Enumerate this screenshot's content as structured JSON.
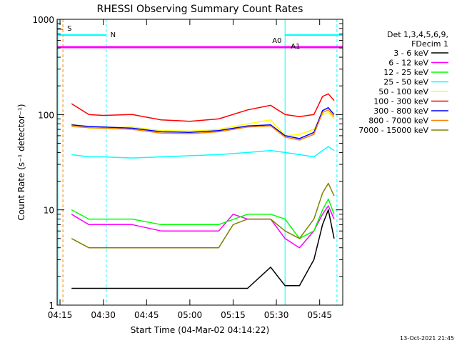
{
  "chart_data": {
    "type": "line",
    "title": "RHESSI Observing Summary Count Rates",
    "xlabel": "Start Time (04-Mar-02 04:14:22)",
    "ylabel": "Count Rate (s⁻¹ detector⁻¹)",
    "y_scale": "log",
    "ylim": [
      1,
      1000
    ],
    "xlim": [
      "04:14",
      "05:53"
    ],
    "x_ticks": [
      "04:15",
      "04:30",
      "04:45",
      "05:00",
      "05:15",
      "05:30",
      "05:45"
    ],
    "y_ticks": [
      "1",
      "10",
      "100",
      "1000"
    ],
    "legend_position": "right",
    "legend_header": [
      "Det 1,3,4,5,6,9,",
      "FDecim 1"
    ],
    "series": [
      {
        "name": "3 - 6 keV",
        "color": "#000000",
        "x": [
          "04:19",
          "04:25",
          "04:30",
          "04:40",
          "04:50",
          "05:00",
          "05:10",
          "05:20",
          "05:28",
          "05:33",
          "05:38",
          "05:43",
          "05:46",
          "05:48",
          "05:50"
        ],
        "y": [
          1.5,
          1.5,
          1.5,
          1.5,
          1.5,
          1.5,
          1.5,
          1.5,
          2.5,
          1.6,
          1.6,
          3,
          7,
          10,
          5
        ]
      },
      {
        "name": "6 - 12 keV",
        "color": "#ff00ff",
        "x": [
          "04:19",
          "04:25",
          "04:30",
          "04:40",
          "04:50",
          "05:00",
          "05:10",
          "05:15",
          "05:20",
          "05:28",
          "05:33",
          "05:38",
          "05:43",
          "05:46",
          "05:48",
          "05:50"
        ],
        "y": [
          9,
          7,
          7,
          7,
          6,
          6,
          6,
          9,
          8,
          8,
          5,
          4,
          6,
          9,
          11,
          8
        ]
      },
      {
        "name": "12 - 25 keV",
        "color": "#00ff00",
        "x": [
          "04:19",
          "04:25",
          "04:30",
          "04:40",
          "04:50",
          "05:00",
          "05:10",
          "05:20",
          "05:28",
          "05:33",
          "05:38",
          "05:43",
          "05:46",
          "05:48",
          "05:50"
        ],
        "y": [
          10,
          8,
          8,
          8,
          7,
          7,
          7,
          9,
          9,
          8,
          5,
          6,
          10,
          13,
          9
        ]
      },
      {
        "name": "25 - 50 keV",
        "color": "#00ffff",
        "x": [
          "04:19",
          "04:25",
          "04:30",
          "04:40",
          "04:50",
          "05:00",
          "05:10",
          "05:20",
          "05:28",
          "05:33",
          "05:38",
          "05:43",
          "05:46",
          "05:48",
          "05:50"
        ],
        "y": [
          38,
          36,
          36,
          35,
          36,
          37,
          38,
          40,
          42,
          40,
          38,
          36,
          42,
          46,
          42
        ]
      },
      {
        "name": "50 - 100 keV",
        "color": "#ffff00",
        "x": [
          "04:19",
          "04:25",
          "04:30",
          "04:40",
          "04:50",
          "05:00",
          "05:10",
          "05:20",
          "05:28",
          "05:33",
          "05:38",
          "05:43",
          "05:46",
          "05:48",
          "05:50"
        ],
        "y": [
          80,
          72,
          72,
          74,
          68,
          67,
          70,
          80,
          88,
          60,
          62,
          70,
          100,
          105,
          90
        ]
      },
      {
        "name": "100 - 300 keV",
        "color": "#ff0000",
        "x": [
          "04:19",
          "04:25",
          "04:30",
          "04:40",
          "04:50",
          "05:00",
          "05:10",
          "05:20",
          "05:28",
          "05:33",
          "05:38",
          "05:43",
          "05:46",
          "05:48",
          "05:50"
        ],
        "y": [
          130,
          100,
          98,
          100,
          88,
          85,
          90,
          112,
          125,
          100,
          95,
          100,
          155,
          165,
          140
        ]
      },
      {
        "name": "300 - 800 keV",
        "color": "#0000ff",
        "x": [
          "04:19",
          "04:25",
          "04:30",
          "04:40",
          "04:50",
          "05:00",
          "05:10",
          "05:20",
          "05:28",
          "05:33",
          "05:38",
          "05:43",
          "05:46",
          "05:48",
          "05:50"
        ],
        "y": [
          78,
          75,
          74,
          72,
          66,
          65,
          68,
          76,
          78,
          60,
          56,
          65,
          110,
          118,
          100
        ]
      },
      {
        "name": "800 - 7000 keV",
        "color": "#ff8000",
        "x": [
          "04:19",
          "04:25",
          "04:30",
          "04:40",
          "04:50",
          "05:00",
          "05:10",
          "05:20",
          "05:28",
          "05:33",
          "05:38",
          "05:43",
          "05:46",
          "05:48",
          "05:50"
        ],
        "y": [
          75,
          73,
          72,
          70,
          64,
          63,
          66,
          74,
          76,
          58,
          54,
          62,
          105,
          112,
          95
        ]
      },
      {
        "name": "7000 - 15000 keV",
        "color": "#808000",
        "x": [
          "04:19",
          "04:25",
          "04:30",
          "04:40",
          "04:50",
          "05:00",
          "05:10",
          "05:15",
          "05:20",
          "05:28",
          "05:33",
          "05:38",
          "05:43",
          "05:46",
          "05:48",
          "05:50"
        ],
        "y": [
          5,
          4,
          4,
          4,
          4,
          4,
          4,
          7,
          8,
          8,
          6,
          5,
          8,
          15,
          19,
          14
        ]
      }
    ],
    "annotations": {
      "S": "S",
      "N": "N",
      "A0": "A0",
      "A1": "A1"
    }
  },
  "footer_date": "13-Oct-2021 21:45"
}
